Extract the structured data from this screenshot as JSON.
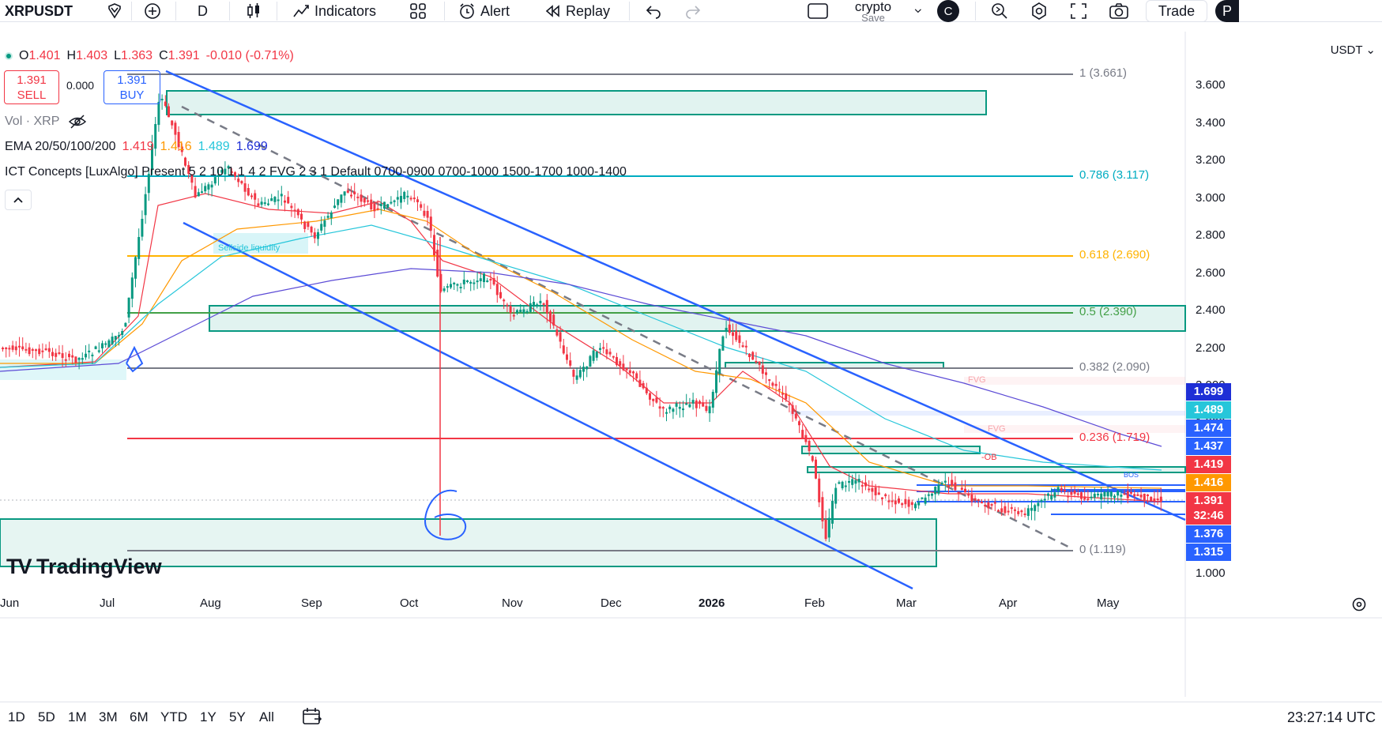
{
  "toolbar": {
    "symbol": "XRPUSDT",
    "interval": "D",
    "indicators_label": "Indicators",
    "alert_label": "Alert",
    "replay_label": "Replay",
    "layout_name": "crypto",
    "layout_status": "Save",
    "avatar_letter": "C",
    "trade_label": "Trade",
    "partial_button": "P"
  },
  "legend": {
    "ohlc": {
      "o_label": "O",
      "o": "1.401",
      "h_label": "H",
      "h": "1.403",
      "l_label": "L",
      "l": "1.363",
      "c_label": "C",
      "c": "1.391",
      "change": "-0.010 (-0.71%)"
    },
    "sell_price": "1.391",
    "sell_label": "SELL",
    "spread": "0.000",
    "buy_price": "1.391",
    "buy_label": "BUY",
    "vol": "Vol · XRP",
    "ema_label": "EMA 20/50/100/200",
    "ema_values": [
      "1.419",
      "1.416",
      "1.489",
      "1.699"
    ],
    "ict": "ICT Concepts [LuxAlgo] Present 5 2 10 1 1 4 2 FVG 2 3 1 Default 0700-0900 0700-1000 1500-1700 1000-1400"
  },
  "price_axis": {
    "currency": "USDT",
    "ticks": [
      "3.600",
      "3.400",
      "3.200",
      "3.000",
      "2.800",
      "2.600",
      "2.400",
      "2.200",
      "2.000",
      "1.800",
      "1.000"
    ],
    "labels": [
      {
        "text": "1.699",
        "color": "#1e2fd6"
      },
      {
        "text": "1.489",
        "color": "#26c6da"
      },
      {
        "text": "1.474",
        "color": "#2962ff"
      },
      {
        "text": "1.437",
        "color": "#2962ff"
      },
      {
        "text": "1.419",
        "color": "#f23645"
      },
      {
        "text": "1.416",
        "color": "#ff9800"
      },
      {
        "text": "1.391",
        "color": "#f23645"
      },
      {
        "text": "32:46",
        "color": "#f23645"
      },
      {
        "text": "1.376",
        "color": "#2962ff"
      },
      {
        "text": "1.315",
        "color": "#2962ff"
      }
    ]
  },
  "time_axis": [
    "Jun",
    "Jul",
    "Aug",
    "Sep",
    "Oct",
    "Nov",
    "Dec",
    "2026",
    "Feb",
    "Mar",
    "Apr",
    "May"
  ],
  "fib_levels": [
    {
      "label": "1 (3.661)",
      "color": "#787b86"
    },
    {
      "label": "0.786 (3.117)",
      "color": "#00acc1"
    },
    {
      "label": "0.618 (2.690)",
      "color": "#ffb300"
    },
    {
      "label": "0.5 (2.390)",
      "color": "#43a047"
    },
    {
      "label": "0.382 (2.090)",
      "color": "#787b86"
    },
    {
      "label": "0.236 (1.719)",
      "color": "#f23645"
    },
    {
      "label": "0 (1.119)",
      "color": "#787b86"
    }
  ],
  "annotations": {
    "sellside": "Sellside liquidity",
    "fvg1": "FVG",
    "fvg2": "FVG",
    "ob": "-OB",
    "bos": "BOS",
    "handwritten": "6"
  },
  "watermark": "TradingView",
  "bottom": {
    "ranges": [
      "1D",
      "5D",
      "1M",
      "3M",
      "6M",
      "YTD",
      "1Y",
      "5Y",
      "All"
    ],
    "clock": "23:27:14 UTC"
  },
  "colors": {
    "up": "#089981",
    "down": "#f23645",
    "channel": "#2962ff",
    "zone": "#089981"
  }
}
